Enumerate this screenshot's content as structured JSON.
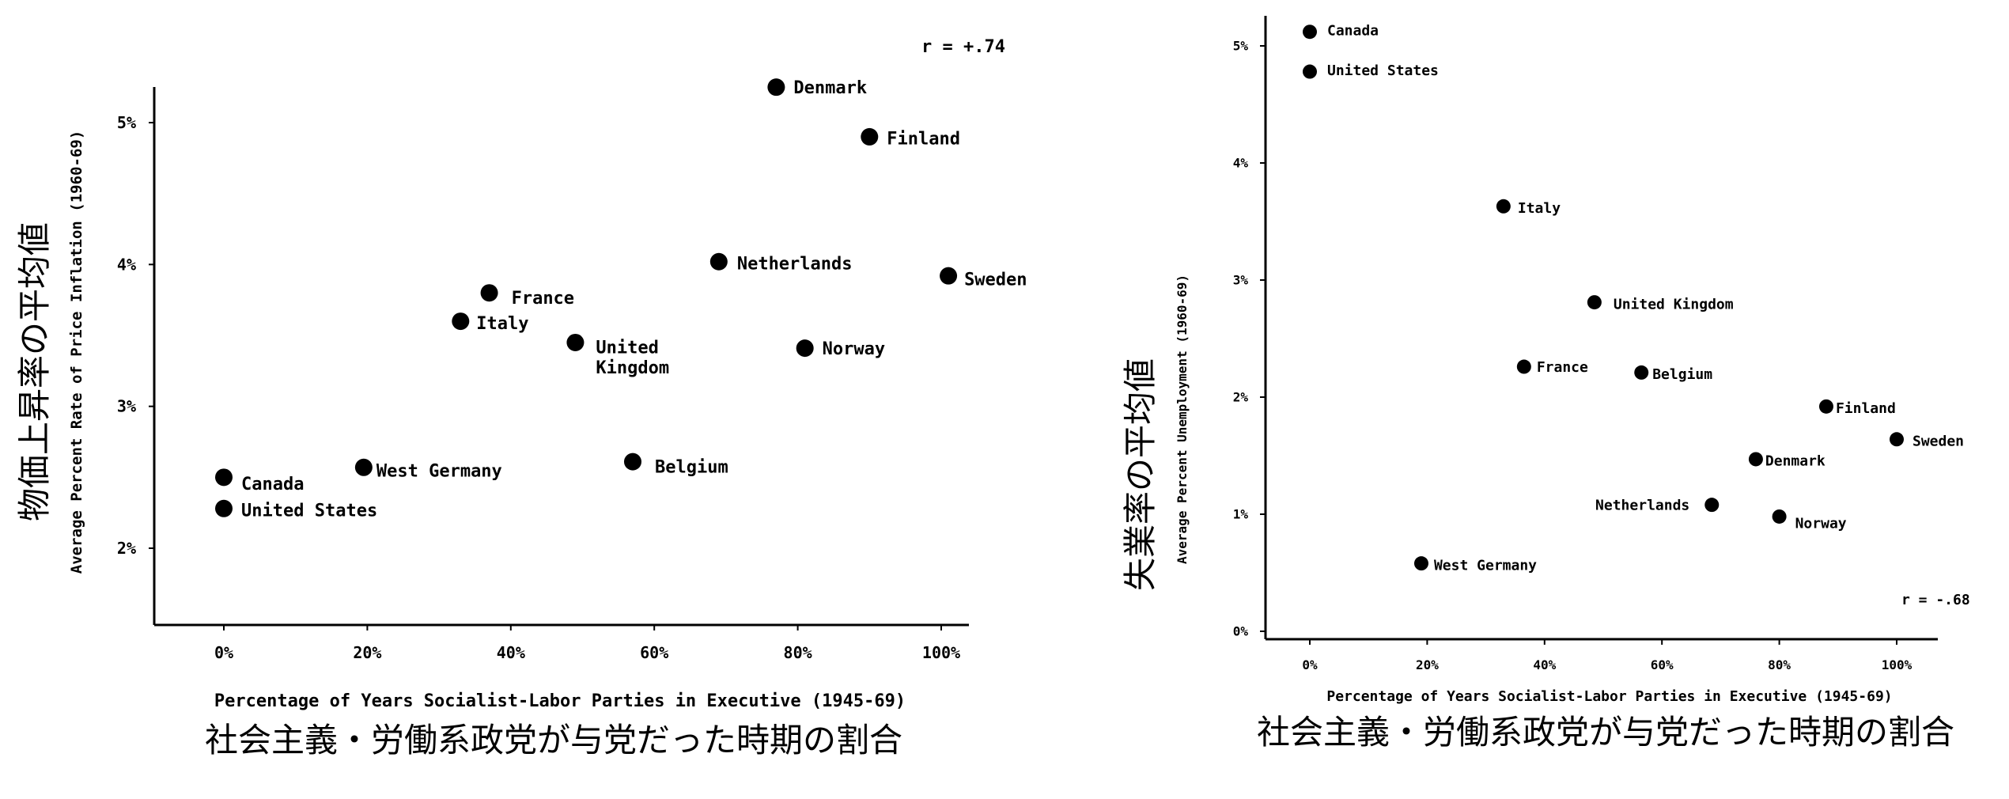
{
  "chart_data": [
    {
      "type": "scatter",
      "title": "",
      "xlabel": "Percentage of Years Socialist-Labor Parties in Executive (1945-69)",
      "xlabel_ja": "社会主義・労働系政党が与党だった時期の割合",
      "ylabel": "Average Percent Rate of Price Inflation (1960-69)",
      "ylabel_ja": "物価上昇率の平均値",
      "annotation": "r = +.74",
      "xlim": [
        -10,
        105
      ],
      "ylim": [
        1.5,
        5.25
      ],
      "x_ticks": [
        0,
        20,
        40,
        60,
        80,
        100
      ],
      "x_tick_labels": [
        "0%",
        "20%",
        "40%",
        "60%",
        "80%",
        "100%"
      ],
      "y_ticks": [
        2,
        3,
        4,
        5
      ],
      "y_tick_labels": [
        "2%",
        "3%",
        "4%",
        "5%"
      ],
      "points": [
        {
          "label": "Canada",
          "x": 0,
          "y": 2.5
        },
        {
          "label": "United States",
          "x": 0,
          "y": 2.28
        },
        {
          "label": "West Germany",
          "x": 19.5,
          "y": 2.57
        },
        {
          "label": "Italy",
          "x": 33,
          "y": 3.6
        },
        {
          "label": "France",
          "x": 37,
          "y": 3.8
        },
        {
          "label": "United Kingdom",
          "x": 49,
          "y": 3.45
        },
        {
          "label": "Belgium",
          "x": 57,
          "y": 2.61
        },
        {
          "label": "Netherlands",
          "x": 69,
          "y": 4.02
        },
        {
          "label": "Denmark",
          "x": 77,
          "y": 5.25
        },
        {
          "label": "Norway",
          "x": 81,
          "y": 3.41
        },
        {
          "label": "Finland",
          "x": 90,
          "y": 4.9
        },
        {
          "label": "Sweden",
          "x": 101,
          "y": 3.92
        }
      ]
    },
    {
      "type": "scatter",
      "title": "",
      "xlabel": "Percentage of Years Socialist-Labor Parties in Executive (1945-69)",
      "xlabel_ja": "社会主義・労働系政党が与党だった時期の割合",
      "ylabel": "Average Percent Unemployment (1960-69)",
      "ylabel_ja": "失業率の平均値",
      "annotation": "r = -.68",
      "xlim": [
        -10,
        102
      ],
      "ylim": [
        0,
        5.2
      ],
      "x_ticks": [
        0,
        20,
        40,
        60,
        80,
        100
      ],
      "x_tick_labels": [
        "0%",
        "20%",
        "40%",
        "60%",
        "80%",
        "100%"
      ],
      "y_ticks": [
        0,
        1,
        2,
        3,
        4,
        5
      ],
      "y_tick_labels": [
        "0%",
        "1%",
        "2%",
        "3%",
        "4%",
        "5%"
      ],
      "points": [
        {
          "label": "Canada",
          "x": 0,
          "y": 5.12
        },
        {
          "label": "United States",
          "x": 0,
          "y": 4.78
        },
        {
          "label": "Italy",
          "x": 33,
          "y": 3.63
        },
        {
          "label": "United Kingdom",
          "x": 48.5,
          "y": 2.81
        },
        {
          "label": "France",
          "x": 36.5,
          "y": 2.26
        },
        {
          "label": "Belgium",
          "x": 56.5,
          "y": 2.21
        },
        {
          "label": "Finland",
          "x": 88,
          "y": 1.92
        },
        {
          "label": "Sweden",
          "x": 100,
          "y": 1.64
        },
        {
          "label": "Denmark",
          "x": 76,
          "y": 1.47
        },
        {
          "label": "Netherlands",
          "x": 68.5,
          "y": 1.08
        },
        {
          "label": "Norway",
          "x": 80,
          "y": 0.98
        },
        {
          "label": "West Germany",
          "x": 19,
          "y": 0.58
        }
      ]
    }
  ]
}
